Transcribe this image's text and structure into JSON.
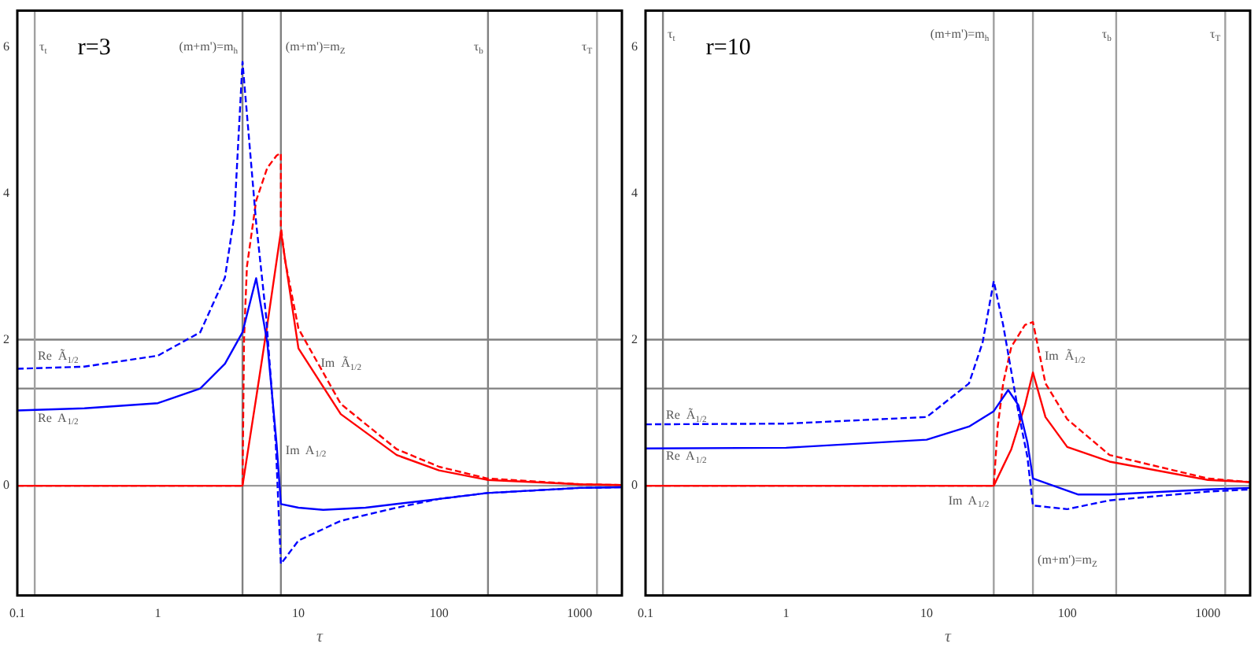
{
  "chart_data": [
    {
      "type": "line",
      "title": "r=3",
      "xlabel": "τ",
      "log": "x",
      "xlim": [
        0.1,
        2000
      ],
      "ylim": [
        -1.5,
        6.5
      ],
      "xticks": [
        0.1,
        1,
        10,
        100,
        1000
      ],
      "yticks": [
        0,
        2,
        4,
        6
      ],
      "marker": "none",
      "legend": false,
      "grid": false,
      "series": [
        {
          "color": "#0000ff",
          "line_style": "dashed",
          "x": [
            0.1,
            0.3,
            1,
            2,
            3,
            3.5,
            4,
            5,
            5.9,
            6.9,
            7.5,
            10,
            20,
            50,
            100,
            220,
            1000,
            2000
          ],
          "values": [
            1.6,
            1.63,
            1.78,
            2.1,
            2.85,
            3.7,
            5.8,
            3.6,
            2.3,
            0.56,
            -1.07,
            -0.75,
            -0.48,
            -0.3,
            -0.18,
            -0.1,
            -0.03,
            -0.02
          ]
        },
        {
          "color": "#0000ff",
          "line_style": "solid",
          "x": [
            0.1,
            0.3,
            1,
            2,
            3,
            4,
            5,
            6,
            7,
            7.5,
            10,
            15,
            30,
            100,
            220,
            1000,
            2000
          ],
          "values": [
            1.03,
            1.06,
            1.13,
            1.33,
            1.67,
            2.1,
            2.84,
            1.96,
            0.56,
            -0.25,
            -0.3,
            -0.33,
            -0.3,
            -0.18,
            -0.1,
            -0.03,
            -0.02
          ]
        },
        {
          "color": "#ff0000",
          "line_style": "dashed",
          "x": [
            0.1,
            4,
            4.1,
            4.3,
            5,
            6,
            7,
            7.5,
            7.5,
            8,
            10,
            20,
            50,
            100,
            220,
            1000,
            2000
          ],
          "values": [
            0,
            0,
            2.0,
            3.0,
            3.9,
            4.35,
            4.52,
            4.55,
            3.55,
            3.1,
            2.15,
            1.12,
            0.5,
            0.26,
            0.1,
            0.02,
            0.01
          ]
        },
        {
          "color": "#ff0000",
          "line_style": "solid",
          "x": [
            0.1,
            4,
            5,
            6,
            7.5,
            10,
            20,
            50,
            100,
            220,
            1000,
            2000
          ],
          "values": [
            0,
            0,
            1.2,
            2.2,
            3.48,
            1.88,
            0.98,
            0.42,
            0.21,
            0.08,
            0.02,
            0.01
          ]
        }
      ],
      "ref_lines": [
        {
          "axis": "y",
          "value": 0,
          "color": "#9a9a9a"
        },
        {
          "axis": "y",
          "value": 1.33,
          "color": "#808080"
        },
        {
          "axis": "y",
          "value": 2,
          "color": "#808080"
        },
        {
          "axis": "x",
          "value": 0.133,
          "color": "#a0a0a0"
        },
        {
          "axis": "x",
          "value": 4,
          "color": "#808080"
        },
        {
          "axis": "x",
          "value": 7.5,
          "color": "#808080"
        },
        {
          "axis": "x",
          "value": 223,
          "color": "#808080"
        },
        {
          "axis": "x",
          "value": 1330,
          "color": "#a0a0a0"
        }
      ],
      "annotations": [
        {
          "text": "τ$_{t}$",
          "x": 0.133,
          "y": 6
        },
        {
          "text": "(m+m')=m$_{h}$",
          "x": 4,
          "y": 6
        },
        {
          "text": "(m+m')=m$_{Z}$",
          "x": 7.5,
          "y": 6
        },
        {
          "text": "τ$_{b}$",
          "x": 223,
          "y": 6
        },
        {
          "text": "τ$_{T}$",
          "x": 1330,
          "y": 6
        },
        {
          "text": "Re  Ã$_{1/2}$",
          "x": 0.14,
          "y": 1.77
        },
        {
          "text": "Re  A$_{1/2}$",
          "x": 0.14,
          "y": 0.92
        },
        {
          "text": "Im  Ã$_{1/2}$",
          "x": 14.4,
          "y": 1.67
        },
        {
          "text": "Im  A$_{1/2}$",
          "x": 7.5,
          "y": 0.48
        }
      ]
    },
    {
      "type": "line",
      "title": "r=10",
      "xlabel": "τ",
      "log": "x",
      "xlim": [
        0.1,
        2000
      ],
      "ylim": [
        -1.5,
        6.5
      ],
      "xticks": [
        0.1,
        1,
        10,
        100,
        1000
      ],
      "yticks": [
        0,
        2,
        4,
        6
      ],
      "marker": "none",
      "legend": false,
      "grid": false,
      "series": [
        {
          "color": "#0000ff",
          "line_style": "dashed",
          "x": [
            0.1,
            1,
            10,
            20,
            25,
            30,
            35,
            45,
            52,
            57,
            100,
            200,
            1000,
            2000
          ],
          "values": [
            0.84,
            0.85,
            0.94,
            1.4,
            1.96,
            2.8,
            2.2,
            1.0,
            0.4,
            -0.27,
            -0.32,
            -0.2,
            -0.08,
            -0.05
          ]
        },
        {
          "color": "#0000ff",
          "line_style": "solid",
          "x": [
            0.1,
            1,
            10,
            20,
            30,
            38,
            45,
            52,
            57,
            120,
            200,
            1000,
            2000
          ],
          "values": [
            0.51,
            0.52,
            0.63,
            0.81,
            1.02,
            1.31,
            1.1,
            0.6,
            0.1,
            -0.12,
            -0.12,
            -0.05,
            -0.03
          ]
        },
        {
          "color": "#ff0000",
          "line_style": "dashed",
          "x": [
            0.1,
            30,
            32,
            35,
            40,
            50,
            57,
            62,
            70,
            100,
            200,
            1000,
            2000
          ],
          "values": [
            0,
            0,
            0.8,
            1.4,
            1.9,
            2.2,
            2.24,
            1.9,
            1.4,
            0.91,
            0.42,
            0.1,
            0.05
          ]
        },
        {
          "color": "#ff0000",
          "line_style": "solid",
          "x": [
            0.1,
            30,
            40,
            50,
            57,
            70,
            100,
            200,
            1000,
            2000
          ],
          "values": [
            0,
            0,
            0.5,
            1.1,
            1.55,
            0.94,
            0.53,
            0.33,
            0.08,
            0.05
          ]
        }
      ],
      "ref_lines": [
        {
          "axis": "y",
          "value": 0,
          "color": "#9a9a9a"
        },
        {
          "axis": "y",
          "value": 1.33,
          "color": "#808080"
        },
        {
          "axis": "y",
          "value": 2,
          "color": "#808080"
        },
        {
          "axis": "x",
          "value": 0.133,
          "color": "#808080"
        },
        {
          "axis": "x",
          "value": 30,
          "color": "#a0a0a0"
        },
        {
          "axis": "x",
          "value": 57,
          "color": "#a0a0a0"
        },
        {
          "axis": "x",
          "value": 223,
          "color": "#a0a0a0"
        },
        {
          "axis": "x",
          "value": 1330,
          "color": "#a0a0a0"
        }
      ],
      "annotations": [
        {
          "text": "τ$_{t}$",
          "x": 0.133,
          "y": 6.17
        },
        {
          "text": "(m+m')=m$_{h}$",
          "x": 30,
          "y": 6.17
        },
        {
          "text": "τ$_{b}$",
          "x": 223,
          "y": 6.17
        },
        {
          "text": "τ$_{T}$",
          "x": 1330,
          "y": 6.17
        },
        {
          "text": "(m+m')=m$_{Z}$",
          "x": 57,
          "y": -1.02
        },
        {
          "text": "Re  Ã$_{1/2}$",
          "x": 0.14,
          "y": 0.96
        },
        {
          "text": "Re  A$_{1/2}$",
          "x": 0.14,
          "y": 0.4
        },
        {
          "text": "Im  Ã$_{1/2}$",
          "x": 69,
          "y": 1.77
        },
        {
          "text": "Im  A$_{1/2}$",
          "x": 30,
          "y": -0.21
        }
      ]
    }
  ]
}
